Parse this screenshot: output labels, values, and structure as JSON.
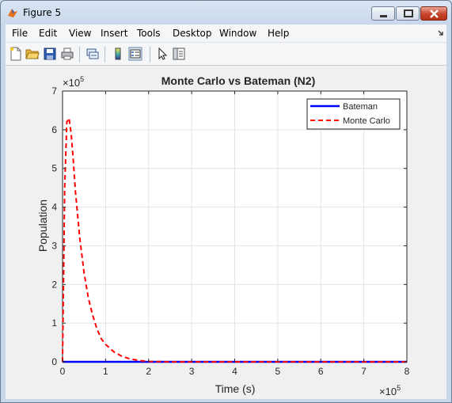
{
  "window": {
    "title": "Figure 5"
  },
  "menu": [
    "File",
    "Edit",
    "View",
    "Insert",
    "Tools",
    "Desktop",
    "Window",
    "Help"
  ],
  "toolbar": {
    "icons": [
      "new-figure-icon",
      "open-file-icon",
      "save-icon",
      "print-icon",
      "link-icon",
      "colorbar-icon",
      "legend-icon",
      "pointer-icon",
      "property-editor-icon"
    ]
  },
  "chart_data": {
    "type": "line",
    "title": "Monte Carlo vs Bateman (N2)",
    "xlabel": "Time (s)",
    "ylabel": "Population",
    "x_exponent": "×10",
    "x_exponent_power": "5",
    "y_exponent": "×10",
    "y_exponent_power": "5",
    "xlim": [
      0,
      8
    ],
    "ylim": [
      0,
      7
    ],
    "xticks": [
      "0",
      "1",
      "2",
      "3",
      "4",
      "5",
      "6",
      "7",
      "8"
    ],
    "yticks": [
      "0",
      "1",
      "2",
      "3",
      "4",
      "5",
      "6",
      "7"
    ],
    "grid": true,
    "legend_position": "top-right",
    "series": [
      {
        "name": "Bateman",
        "color": "#0000ff",
        "style": "solid",
        "x": [
          0,
          1,
          2,
          3,
          4,
          5,
          6,
          7,
          8
        ],
        "y": [
          0,
          0,
          0,
          0,
          0,
          0,
          0,
          0,
          0
        ]
      },
      {
        "name": "Monte Carlo",
        "color": "#ff0000",
        "style": "dashed",
        "x": [
          0,
          0.05,
          0.1,
          0.15,
          0.2,
          0.25,
          0.3,
          0.4,
          0.5,
          0.6,
          0.7,
          0.8,
          0.9,
          1.0,
          1.2,
          1.4,
          1.6,
          1.8,
          2.0,
          2.5,
          3,
          4,
          5,
          6,
          7,
          8
        ],
        "y": [
          0,
          4.5,
          6.2,
          6.3,
          5.9,
          5.2,
          4.4,
          3.2,
          2.3,
          1.65,
          1.2,
          0.85,
          0.6,
          0.45,
          0.25,
          0.13,
          0.07,
          0.03,
          0.01,
          0,
          0,
          0,
          0,
          0,
          0,
          0
        ]
      }
    ]
  }
}
